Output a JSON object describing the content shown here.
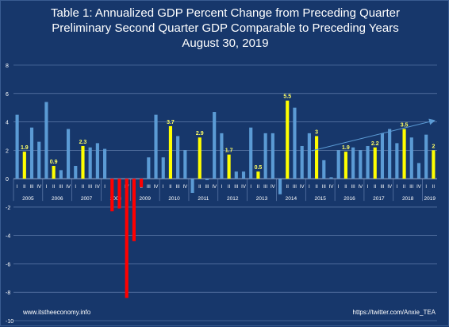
{
  "title_lines": [
    "Table 1: Annualized GDP Percent Change from Preceding Quarter",
    "Preliminary Second Quarter GDP Comparable to Preceding Years",
    "August 30, 2019"
  ],
  "footer": {
    "left": "www.itstheeconomy.info",
    "right": "https://twitter.com/Anxie_TEA"
  },
  "colors": {
    "background": "#17376b",
    "regular": "#5b9bd5",
    "q2": "#ffff00",
    "negative_q2": "#ff0000",
    "grid": "#6f8ab8",
    "label": "#ffff66"
  },
  "chart_data": {
    "type": "bar",
    "ylim": [
      -10,
      8
    ],
    "yticks": [
      -10,
      -8,
      -6,
      -4,
      -2,
      0,
      2,
      4,
      6,
      8
    ],
    "grid": true,
    "legend": "none",
    "trend_arrow": true,
    "quarter_labels": [
      "I",
      "II",
      "III",
      "IV"
    ],
    "years": [
      "2005",
      "2006",
      "2007",
      "2008",
      "2009",
      "2010",
      "2011",
      "2012",
      "2013",
      "2014",
      "2015",
      "2016",
      "2017",
      "2018",
      "2019"
    ],
    "values": [
      4.5,
      1.9,
      3.6,
      2.6,
      5.4,
      0.9,
      0.6,
      3.5,
      0.9,
      2.3,
      2.2,
      2.5,
      2.1,
      -2.3,
      -2.1,
      -8.4,
      -4.4,
      -0.6,
      1.5,
      4.5,
      1.5,
      3.7,
      3.0,
      2.0,
      -1.0,
      2.9,
      -0.1,
      4.7,
      3.2,
      1.7,
      0.5,
      0.5,
      3.6,
      0.5,
      3.2,
      3.2,
      -1.1,
      5.5,
      5.0,
      2.3,
      3.2,
      3.0,
      1.3,
      0.1,
      2.0,
      1.9,
      2.2,
      2.0,
      2.3,
      2.2,
      3.2,
      3.5,
      2.5,
      3.5,
      2.9,
      1.1,
      3.1,
      2.0
    ],
    "data_labels": [
      {
        "index": 1,
        "text": "1.9"
      },
      {
        "index": 5,
        "text": "0.9"
      },
      {
        "index": 9,
        "text": "2.3"
      },
      {
        "index": 21,
        "text": "3.7"
      },
      {
        "index": 25,
        "text": "2.9"
      },
      {
        "index": 29,
        "text": "1.7"
      },
      {
        "index": 33,
        "text": "0.5"
      },
      {
        "index": 37,
        "text": "5.5"
      },
      {
        "index": 41,
        "text": "3"
      },
      {
        "index": 45,
        "text": "1.9"
      },
      {
        "index": 49,
        "text": "2.2"
      },
      {
        "index": 53,
        "text": "3.5"
      },
      {
        "index": 57,
        "text": "2"
      }
    ]
  }
}
